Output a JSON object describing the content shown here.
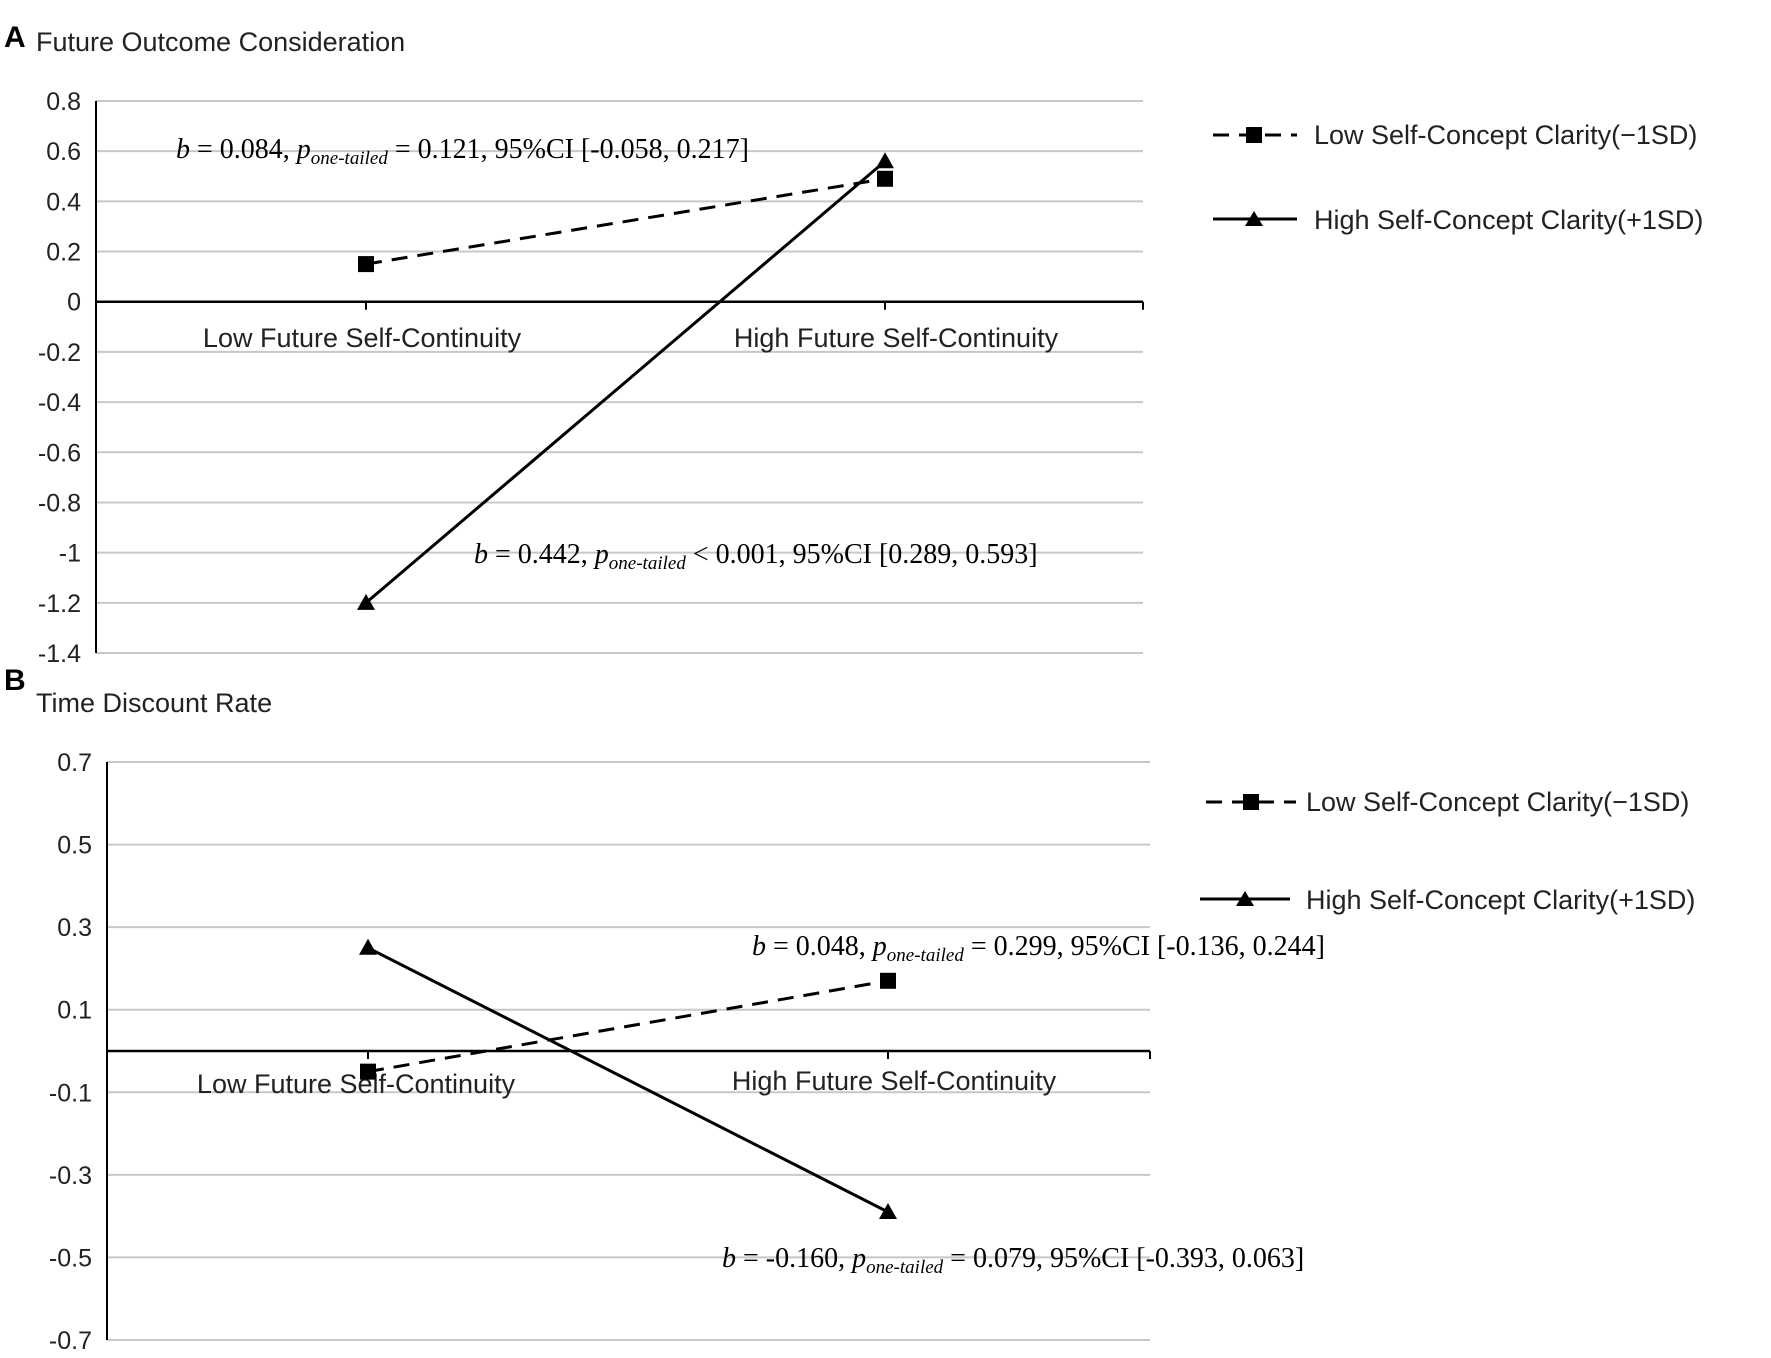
{
  "chart_data": [
    {
      "panel_label": "A",
      "type": "line",
      "title": "Future Outcome Consideration",
      "categories": [
        "Low Future Self-Continuity",
        "High Future Self-Continuity"
      ],
      "ylim": [
        -1.4,
        0.8
      ],
      "y_ticks": [
        "0.8",
        "0.6",
        "0.4",
        "0.2",
        "0",
        "-0.2",
        "-0.4",
        "-0.6",
        "-0.8",
        "-1",
        "-1.2",
        "-1.4"
      ],
      "grid": true,
      "legend_position": "right",
      "series": [
        {
          "name": "Low Self-Concept Clarity(−1SD)",
          "values": [
            0.15,
            0.49
          ],
          "line_style": "dashed",
          "marker": "square",
          "color": "#000000"
        },
        {
          "name": "High Self-Concept Clarity(+1SD)",
          "values": [
            -1.2,
            0.56
          ],
          "line_style": "solid",
          "marker": "triangle",
          "color": "#000000"
        }
      ],
      "annotations": [
        {
          "b": "b",
          "eq1": " = 0.084, ",
          "p": "p",
          "sub": "one-tailed",
          "rest": " = 0.121, 95%CI [-0.058, 0.217]"
        },
        {
          "b": "b",
          "eq1": " = 0.442, ",
          "p": "p",
          "sub": "one-tailed",
          "rest": " < 0.001, 95%CI [0.289, 0.593]"
        }
      ]
    },
    {
      "panel_label": "B",
      "type": "line",
      "title": "Time Discount Rate",
      "categories": [
        "Low Future Self-Continuity",
        "High Future Self-Continuity"
      ],
      "ylim": [
        -0.7,
        0.7
      ],
      "y_ticks": [
        "0.7",
        "0.5",
        "0.3",
        "0.1",
        "-0.1",
        "-0.3",
        "-0.5",
        "-0.7"
      ],
      "grid": true,
      "legend_position": "right",
      "series": [
        {
          "name": "Low Self-Concept Clarity(−1SD)",
          "values": [
            -0.05,
            0.17
          ],
          "line_style": "dashed",
          "marker": "square",
          "color": "#000000"
        },
        {
          "name": "High Self-Concept Clarity(+1SD)",
          "values": [
            0.25,
            -0.39
          ],
          "line_style": "solid",
          "marker": "triangle",
          "color": "#000000"
        }
      ],
      "annotations": [
        {
          "b": "b",
          "eq1": " = 0.048, ",
          "p": "p",
          "sub": "one-tailed",
          "rest": " = 0.299, 95%CI [-0.136, 0.244]"
        },
        {
          "b": "b",
          "eq1": " = -0.160, ",
          "p": "p",
          "sub": "one-tailed",
          "rest": " = 0.079, 95%CI [-0.393, 0.063]"
        }
      ]
    }
  ]
}
